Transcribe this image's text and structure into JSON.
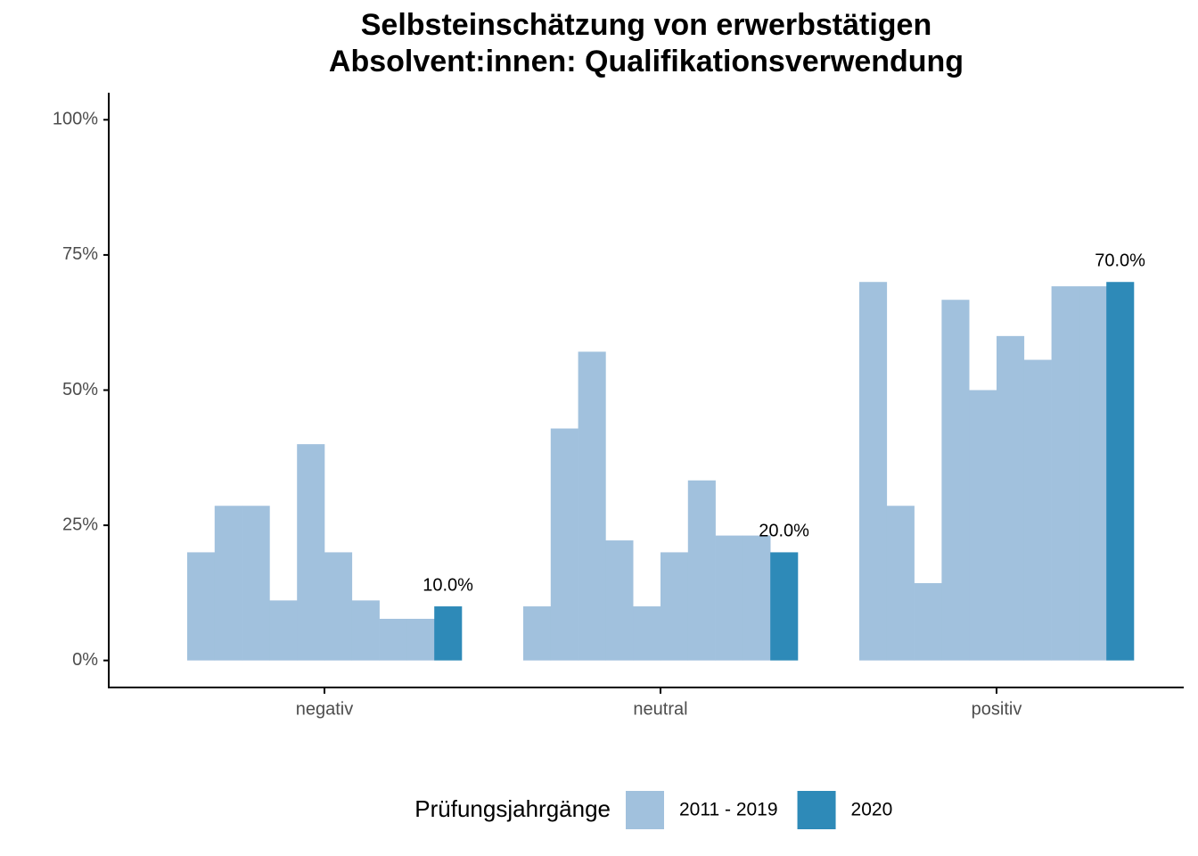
{
  "chart_data": {
    "type": "bar",
    "title": [
      "Selbsteinschätzung von erwerbstätigen",
      "Absolvent:innen: Qualifikationsverwendung"
    ],
    "categories": [
      "negativ",
      "neutral",
      "positiv"
    ],
    "legend_title": "Prüfungsjahrgänge",
    "series": [
      {
        "name": "2011 - 2019",
        "color": "#a1c1dd",
        "values": [
          [
            20,
            28.6,
            28.6,
            11.1,
            40,
            20,
            11.1,
            7.7,
            7.7
          ],
          [
            10,
            42.9,
            57.1,
            22.2,
            10,
            20,
            33.3,
            23.1,
            23.1
          ],
          [
            70,
            28.6,
            14.3,
            66.7,
            50,
            60,
            55.6,
            69.2,
            69.2
          ]
        ]
      },
      {
        "name": "2020",
        "color": "#2e8ab8",
        "values": [
          10,
          20,
          70
        ],
        "value_labels": [
          "10.0%",
          "20.0%",
          "70.0%"
        ]
      }
    ],
    "ylim": [
      -5,
      105
    ],
    "yticks": [
      {
        "value": 0,
        "label": "0%"
      },
      {
        "value": 25,
        "label": "25%"
      },
      {
        "value": 50,
        "label": "50%"
      },
      {
        "value": 75,
        "label": "75%"
      },
      {
        "value": 100,
        "label": "100%"
      }
    ],
    "grid": false
  }
}
